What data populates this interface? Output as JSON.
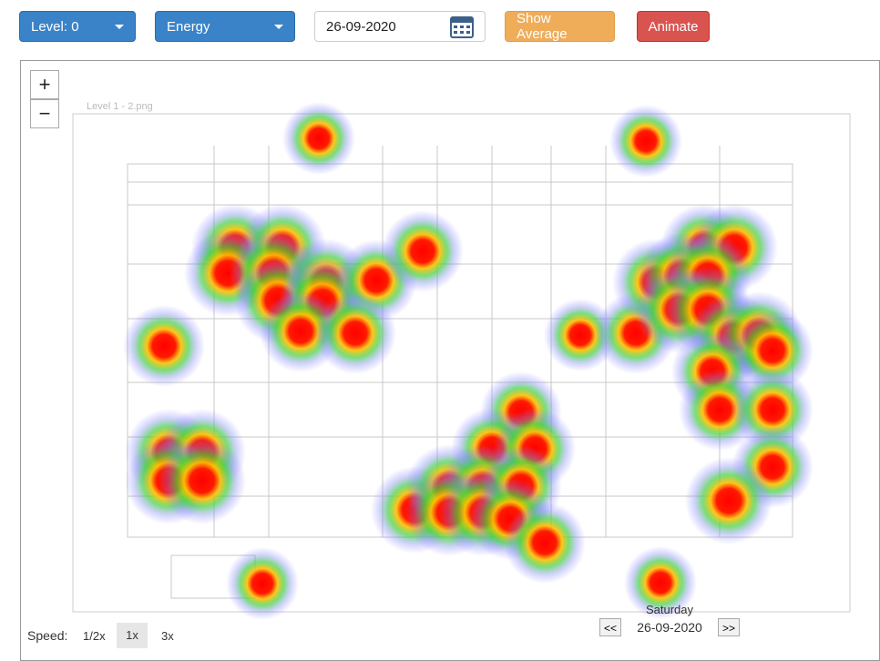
{
  "toolbar": {
    "level": "Level: 0",
    "metric": "Energy",
    "date": "26-09-2020",
    "show_average": "Show Average",
    "animate": "Animate"
  },
  "map": {
    "zoom_in": "+",
    "zoom_out": "−",
    "image_label": "Level 1 - 2.png"
  },
  "footer": {
    "speed_label": "Speed:",
    "speeds": [
      "1/2x",
      "1x",
      "3x"
    ],
    "weekday": "Saturday",
    "date": "26-09-2020",
    "prev": "<<",
    "next": ">>"
  }
}
